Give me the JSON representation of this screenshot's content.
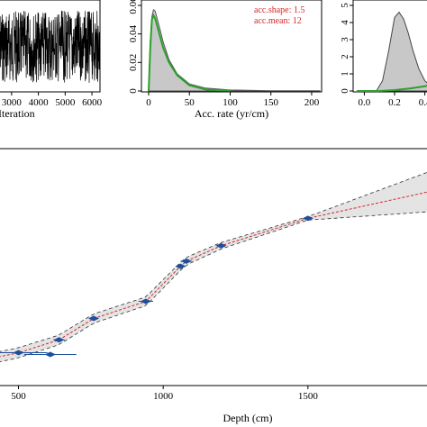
{
  "chart_data": [
    {
      "type": "line",
      "xlabel": "Iteration",
      "x_ticks": [
        "3000",
        "4000",
        "5000",
        "6000"
      ],
      "xlim": [
        2500,
        6300
      ],
      "note": "MCMC trace plot of log-objective (dense black noise)"
    },
    {
      "type": "area",
      "xlabel": "Acc. rate (yr/cm)",
      "x_ticks": [
        "0",
        "50",
        "100",
        "150",
        "200"
      ],
      "y_ticks": [
        "0",
        "0.02",
        "0.04",
        "0.06"
      ],
      "xlim": [
        0,
        210
      ],
      "ylim": [
        0,
        0.06
      ],
      "annotations": [
        "acc.shape: 1.5",
        "acc.mean: 12"
      ],
      "prior": {
        "x": [
          0,
          2,
          4,
          6,
          8,
          10,
          14,
          18,
          25,
          35,
          50,
          70,
          100,
          150,
          210
        ],
        "y": [
          0,
          0.035,
          0.052,
          0.057,
          0.056,
          0.052,
          0.043,
          0.034,
          0.022,
          0.012,
          0.005,
          0.002,
          0.0007,
          0.0002,
          0.0001
        ]
      },
      "posterior": {
        "x": [
          0,
          2,
          4,
          6,
          8,
          10,
          14,
          18,
          25,
          35,
          50,
          70,
          100
        ],
        "y": [
          0,
          0.03,
          0.05,
          0.053,
          0.051,
          0.047,
          0.038,
          0.03,
          0.02,
          0.011,
          0.004,
          0.001,
          0.0002
        ]
      }
    },
    {
      "type": "area",
      "x_ticks": [
        "0.0",
        "0.2",
        "0.4"
      ],
      "y_ticks": [
        "0",
        "1",
        "2",
        "3",
        "4",
        "5"
      ],
      "xlim": [
        -0.05,
        0.45
      ],
      "ylim": [
        0,
        5
      ],
      "posterior": {
        "x": [
          0.08,
          0.12,
          0.16,
          0.2,
          0.23,
          0.26,
          0.29,
          0.32,
          0.36,
          0.4,
          0.45
        ],
        "y": [
          0,
          0.6,
          2.3,
          4.3,
          4.6,
          4.2,
          3.4,
          2.4,
          1.3,
          0.6,
          0.2
        ]
      },
      "prior": {
        "x": [
          -0.05,
          0.0,
          0.1,
          0.2,
          0.3,
          0.4,
          0.45
        ],
        "y": [
          0,
          0.0,
          0.0,
          0.05,
          0.15,
          0.28,
          0.35
        ]
      }
    },
    {
      "type": "line",
      "xlabel": "Depth (cm)",
      "x_ticks": [
        "500",
        "1000",
        "1500"
      ],
      "xlim": [
        430,
        1930
      ],
      "ylim": [
        0,
        1
      ],
      "model": {
        "x": [
          430,
          500,
          640,
          760,
          940,
          1060,
          1080,
          1200,
          1500,
          1930
        ],
        "y": [
          0.03,
          0.055,
          0.13,
          0.255,
          0.355,
          0.56,
          0.59,
          0.68,
          0.84,
          1.0
        ]
      },
      "envelope_width": {
        "x": [
          430,
          1000,
          1500,
          1930
        ],
        "y": [
          0.03,
          0.025,
          0.01,
          0.12
        ]
      },
      "dates": [
        {
          "x": 500,
          "y": 0.055,
          "spread": 100
        },
        {
          "x": 610,
          "y": 0.045,
          "spread": 90
        },
        {
          "x": 640,
          "y": 0.13,
          "spread": 20
        },
        {
          "x": 760,
          "y": 0.255,
          "spread": 15
        },
        {
          "x": 940,
          "y": 0.355,
          "spread": 25
        },
        {
          "x": 1060,
          "y": 0.56,
          "spread": 15
        },
        {
          "x": 1080,
          "y": 0.59,
          "spread": 20
        },
        {
          "x": 1200,
          "y": 0.68,
          "spread": 15
        },
        {
          "x": 1500,
          "y": 0.84,
          "spread": 10
        }
      ]
    }
  ]
}
